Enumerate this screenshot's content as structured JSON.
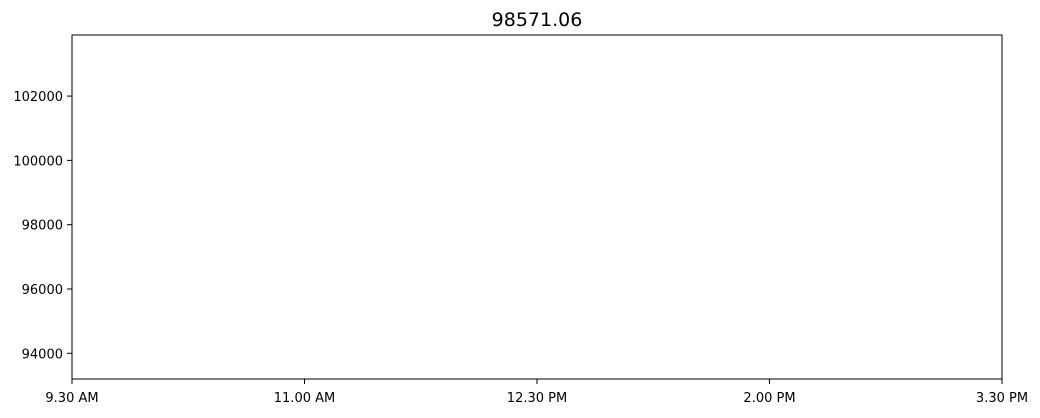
{
  "chart_data": {
    "type": "line",
    "title": "98571.06",
    "xlabel": "",
    "ylabel": "",
    "x_ticks": [
      "9.30 AM",
      "11.00 AM",
      "12.30 PM",
      "2.00 PM",
      "3.30 PM"
    ],
    "y_ticks": [
      94000,
      96000,
      98000,
      100000,
      102000
    ],
    "ylim": [
      93200,
      103900
    ],
    "grid": false,
    "series": []
  }
}
